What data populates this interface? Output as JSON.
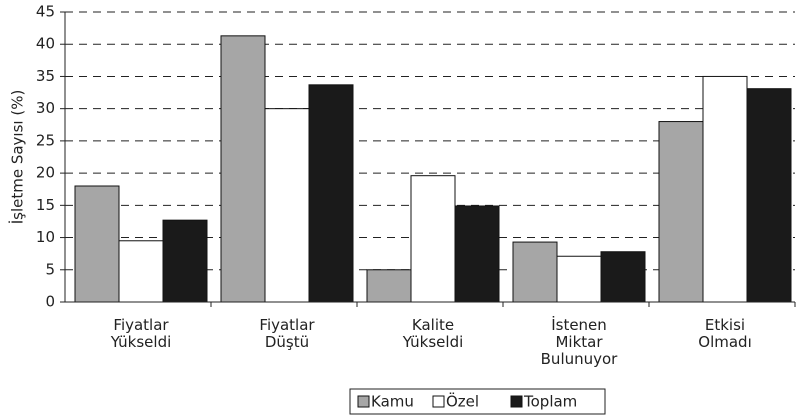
{
  "chart_data": {
    "type": "bar",
    "ylabel": "İşletme Sayısı (%)",
    "categories": [
      "Fiyatlar\nYükseldi",
      "Fiyatlar\nDüştü",
      "Kalite\nYükseldi",
      "İstenen\nMiktar\nBulunuyor",
      "Etkisi\nOlmadı"
    ],
    "series": [
      {
        "name": "Kamu",
        "color": "#a6a6a6",
        "values": [
          18.0,
          41.3,
          5.0,
          9.3,
          28.0
        ]
      },
      {
        "name": "Özel",
        "color": "#ffffff",
        "values": [
          9.5,
          30.0,
          19.6,
          7.1,
          35.0
        ]
      },
      {
        "name": "Toplam",
        "color": "#1a1a1a",
        "values": [
          12.7,
          33.7,
          14.9,
          7.8,
          33.1
        ]
      }
    ],
    "ylim": [
      0,
      45
    ],
    "yticks": [
      0,
      5,
      10,
      15,
      20,
      25,
      30,
      35,
      40,
      45
    ],
    "grid": true,
    "legend": "bottom"
  }
}
